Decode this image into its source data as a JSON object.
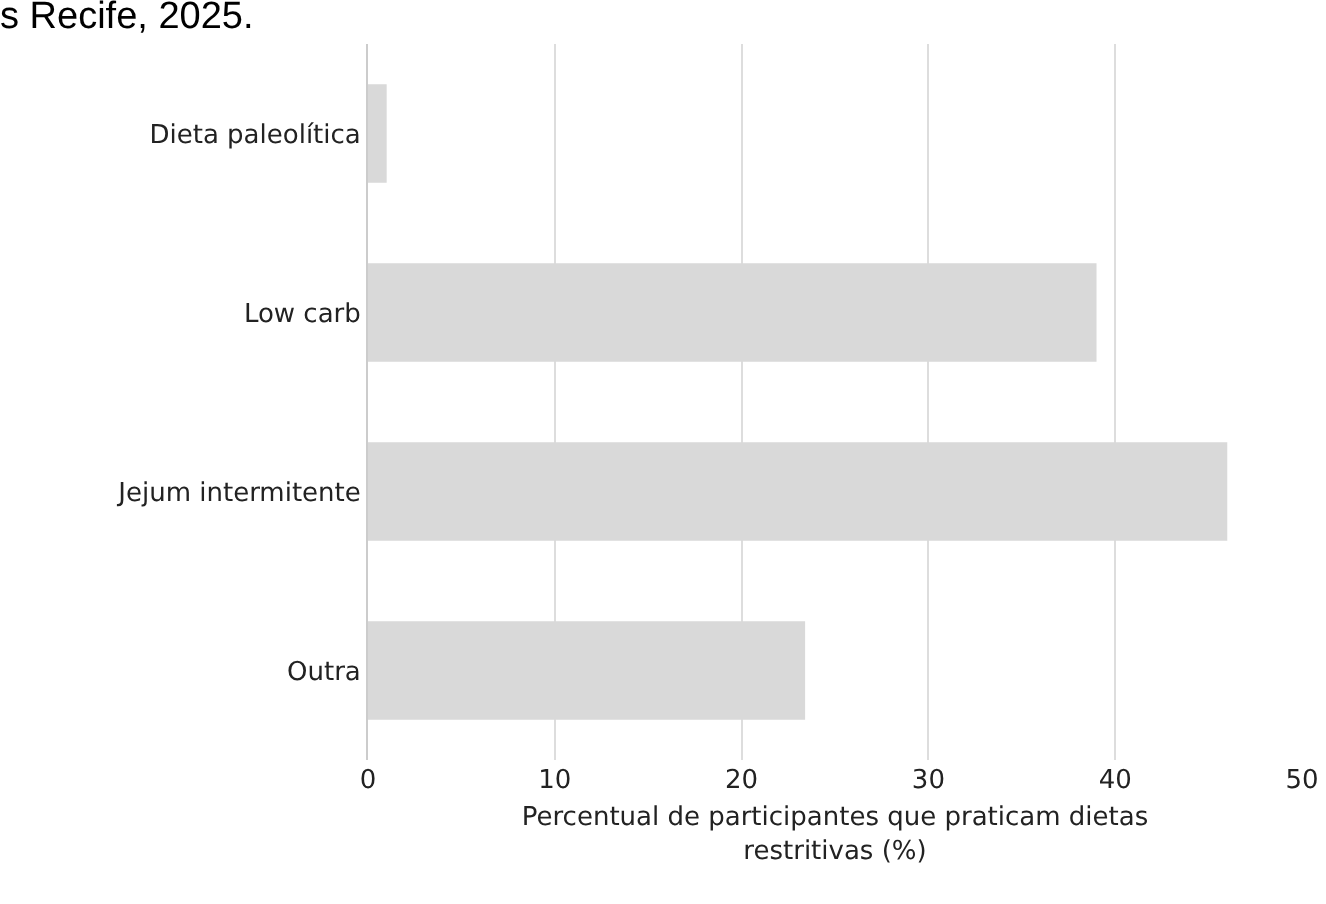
{
  "chart_data": {
    "type": "bar",
    "orientation": "horizontal",
    "title": "s Recife, 2025.",
    "xlabel": "Percentual de participantes que praticam dietas\nrestritivas (%)",
    "categories": [
      "Dieta paleolítica",
      "Low carb",
      "Jejum intermitente",
      "Outra"
    ],
    "values": [
      1,
      39,
      46,
      23.4
    ],
    "color": "#d9d9d9",
    "xlim": [
      0,
      50
    ],
    "xticks": [
      0,
      10,
      20,
      30,
      40,
      50
    ],
    "grid": "x",
    "legend": false
  }
}
